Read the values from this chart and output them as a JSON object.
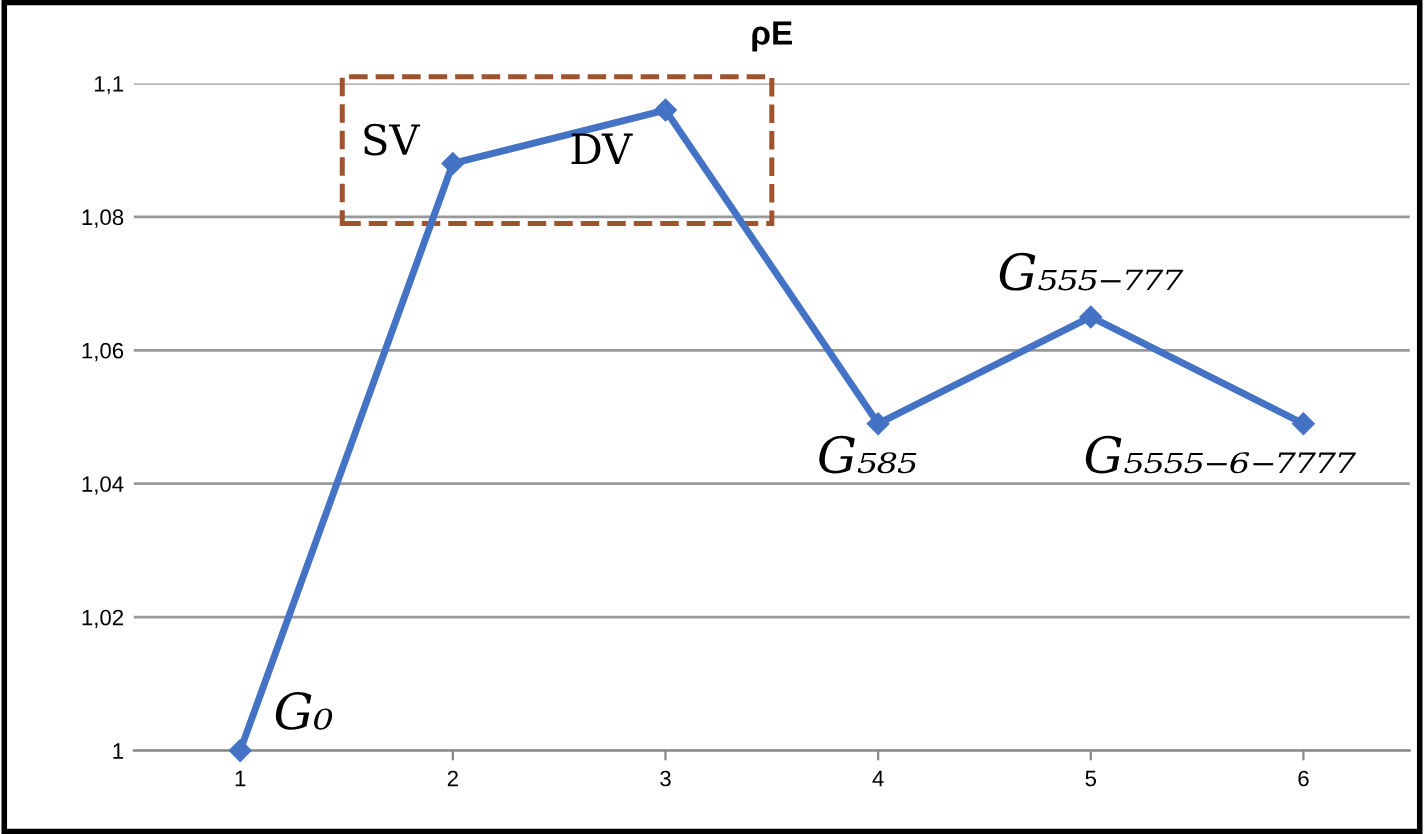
{
  "chart_data": {
    "type": "line",
    "title": "ρE",
    "categories": [
      "1",
      "2",
      "3",
      "4",
      "5",
      "6"
    ],
    "series": [
      {
        "color": "#4472c4",
        "values": [
          1.0,
          1.088,
          1.096,
          1.049,
          1.065,
          1.049
        ]
      }
    ],
    "ylim": [
      1,
      1.1
    ],
    "yticks": [
      {
        "value": 1,
        "label": "1"
      },
      {
        "value": 1.02,
        "label": "1,02"
      },
      {
        "value": 1.04,
        "label": "1,04"
      },
      {
        "value": 1.06,
        "label": "1,06"
      },
      {
        "value": 1.08,
        "label": "1,08"
      },
      {
        "value": 1.1,
        "label": "1,1"
      }
    ],
    "grid": "y",
    "marker": "diamond",
    "line_style": "solid",
    "legend": false,
    "annotations": [
      {
        "text": "G₀",
        "x": "1",
        "y": 1.0
      },
      {
        "text": "SV",
        "x": "2",
        "y": 1.088
      },
      {
        "text": "DV",
        "x": "3",
        "y": 1.096
      },
      {
        "text": "G₅₈₅",
        "x": "4",
        "y": 1.049
      },
      {
        "text": "G₅₅₅₋₇₇₇",
        "x": "5",
        "y": 1.065
      },
      {
        "text": "G₅₅₅₅₋₆₋₇₇₇₇",
        "x": "6",
        "y": 1.049
      }
    ]
  }
}
